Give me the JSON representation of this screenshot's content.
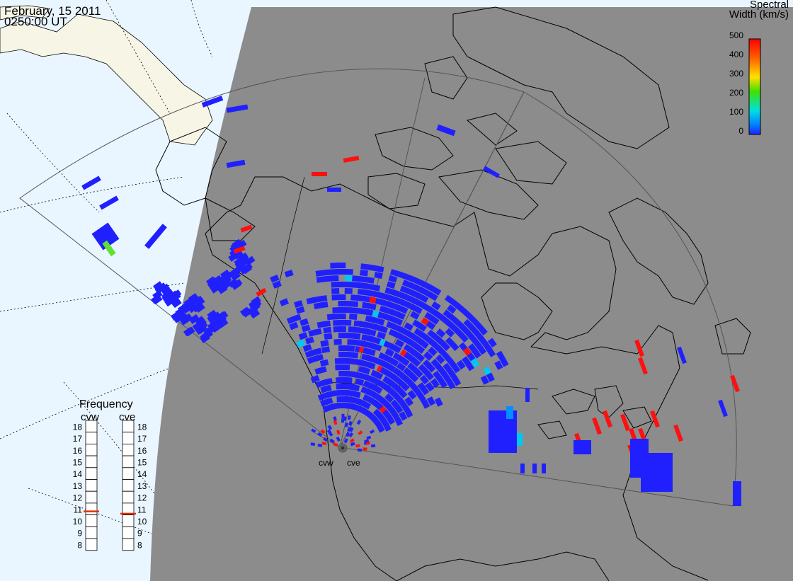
{
  "header": {
    "date": "February, 15 2011",
    "time": "0250:00 UT"
  },
  "colorbar": {
    "title_line1": "Spectral",
    "title_line2": "Width (km/s)",
    "ticks": [
      "500",
      "400",
      "300",
      "200",
      "100",
      "0"
    ],
    "colors": [
      "#ff0000",
      "#ff8000",
      "#ffe000",
      "#30e000",
      "#00e0e0",
      "#0060ff",
      "#2020ff"
    ]
  },
  "frequency_panel": {
    "title": "Frequency",
    "radars": [
      {
        "label": "cvw",
        "frequency_mhz": 10.8
      },
      {
        "label": "cve",
        "frequency_mhz": 10.6
      }
    ],
    "scale": [
      "18",
      "17",
      "16",
      "15",
      "14",
      "13",
      "12",
      "11",
      "10",
      "9",
      "8"
    ],
    "marker_color": "#e03000"
  },
  "radar_sites": {
    "west_label": "cvw",
    "east_label": "cve"
  },
  "colors": {
    "night_shade": "#8c8c8c",
    "ocean_day": "#eaf6ff",
    "land_day": "#f7f5e6",
    "echo_primary": "#2020ff"
  }
}
